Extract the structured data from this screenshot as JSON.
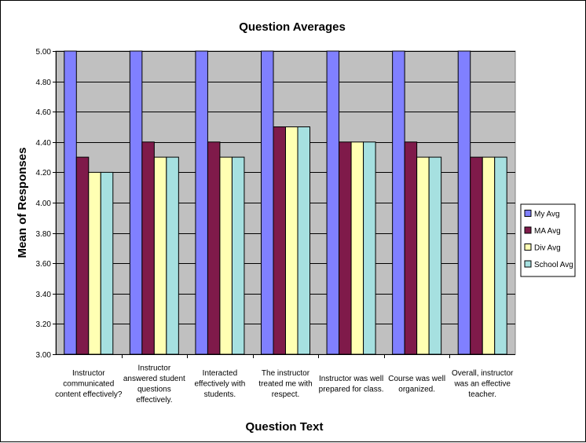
{
  "chart_data": {
    "type": "bar",
    "title": "Question Averages",
    "xlabel": "Question Text",
    "ylabel": "Mean of Responses",
    "ylim": [
      3.0,
      5.0
    ],
    "ytick_step": 0.2,
    "ytick_labels": [
      "3.00",
      "3.20",
      "3.40",
      "3.60",
      "3.80",
      "4.00",
      "4.20",
      "4.40",
      "4.60",
      "4.80",
      "5.00"
    ],
    "grid": true,
    "legend_position": "right",
    "categories": [
      [
        "Instructor",
        "communicated",
        "content effectively?"
      ],
      [
        "Instructor",
        "answered student",
        "questions",
        "effectively."
      ],
      [
        "Interacted",
        "effectively with",
        "students."
      ],
      [
        "The instructor",
        "treated me with",
        "respect."
      ],
      [
        "Instructor was well",
        "prepared for class."
      ],
      [
        "Course was well",
        "organized."
      ],
      [
        "Overall, instructor",
        "was an effective",
        "teacher."
      ]
    ],
    "series": [
      {
        "name": "My Avg",
        "color": "#8080ff",
        "values": [
          5.0,
          5.0,
          5.0,
          5.0,
          5.0,
          5.0,
          5.0
        ]
      },
      {
        "name": "MA Avg",
        "color": "#7f1a4a",
        "values": [
          4.3,
          4.4,
          4.4,
          4.5,
          4.4,
          4.4,
          4.3
        ]
      },
      {
        "name": "Div Avg",
        "color": "#ffffb3",
        "values": [
          4.2,
          4.3,
          4.3,
          4.5,
          4.4,
          4.3,
          4.3
        ]
      },
      {
        "name": "School Avg",
        "color": "#a6e0e0",
        "values": [
          4.2,
          4.3,
          4.3,
          4.5,
          4.4,
          4.3,
          4.3
        ]
      }
    ],
    "colors": {
      "plot_background": "#c0c0c0",
      "grid": "#000000",
      "bar_outline": "#000000"
    }
  }
}
